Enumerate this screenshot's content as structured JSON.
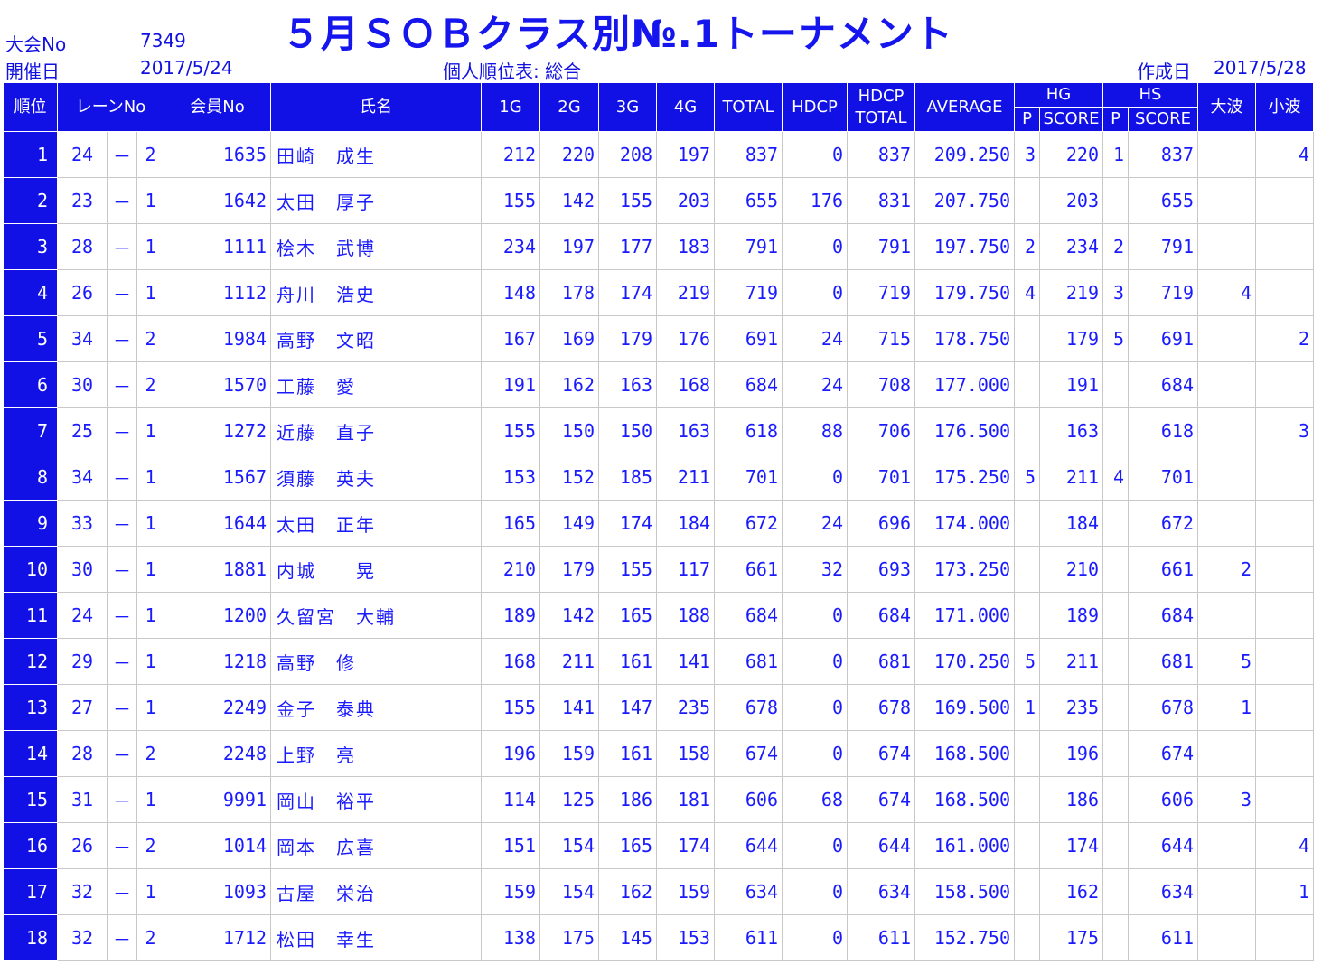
{
  "header": {
    "title": "５月ＳＯＢクラス別№.1トーナメント",
    "event_no_label": "大会No",
    "event_no": "7349",
    "held_label": "開催日",
    "held_date": "2017/5/24",
    "report_label": "個人順位表: 総合",
    "created_label": "作成日",
    "created_date": "2017/5/28"
  },
  "columns": {
    "rank": "順位",
    "lane": "レーンNo",
    "member": "会員No",
    "name": "氏名",
    "g1": "1G",
    "g2": "2G",
    "g3": "3G",
    "g4": "4G",
    "total": "TOTAL",
    "hdcp": "HDCP",
    "hdcp_total_1": "HDCP",
    "hdcp_total_2": "TOTAL",
    "average": "AVERAGE",
    "hg": "HG",
    "hg_p": "P",
    "hg_score": "SCORE",
    "hs": "HS",
    "hs_p": "P",
    "hs_score": "SCORE",
    "big": "大波",
    "small": "小波"
  },
  "rows": [
    {
      "rank": "1",
      "lane1": "24",
      "dash": "－",
      "lane2": "2",
      "member": "1635",
      "name": "田崎　成生",
      "g1": "212",
      "g2": "220",
      "g3": "208",
      "g4": "197",
      "total": "837",
      "hdcp": "0",
      "htotal": "837",
      "avg": "209.250",
      "hgp": "3",
      "hgs": "220",
      "hsp": "1",
      "hss": "837",
      "big": "",
      "small": "4"
    },
    {
      "rank": "2",
      "lane1": "23",
      "dash": "－",
      "lane2": "1",
      "member": "1642",
      "name": "太田　厚子",
      "g1": "155",
      "g2": "142",
      "g3": "155",
      "g4": "203",
      "total": "655",
      "hdcp": "176",
      "htotal": "831",
      "avg": "207.750",
      "hgp": "",
      "hgs": "203",
      "hsp": "",
      "hss": "655",
      "big": "",
      "small": ""
    },
    {
      "rank": "3",
      "lane1": "28",
      "dash": "－",
      "lane2": "1",
      "member": "1111",
      "name": "桧木　武博",
      "g1": "234",
      "g2": "197",
      "g3": "177",
      "g4": "183",
      "total": "791",
      "hdcp": "0",
      "htotal": "791",
      "avg": "197.750",
      "hgp": "2",
      "hgs": "234",
      "hsp": "2",
      "hss": "791",
      "big": "",
      "small": ""
    },
    {
      "rank": "4",
      "lane1": "26",
      "dash": "－",
      "lane2": "1",
      "member": "1112",
      "name": "舟川　浩史",
      "g1": "148",
      "g2": "178",
      "g3": "174",
      "g4": "219",
      "total": "719",
      "hdcp": "0",
      "htotal": "719",
      "avg": "179.750",
      "hgp": "4",
      "hgs": "219",
      "hsp": "3",
      "hss": "719",
      "big": "4",
      "small": ""
    },
    {
      "rank": "5",
      "lane1": "34",
      "dash": "－",
      "lane2": "2",
      "member": "1984",
      "name": "高野　文昭",
      "g1": "167",
      "g2": "169",
      "g3": "179",
      "g4": "176",
      "total": "691",
      "hdcp": "24",
      "htotal": "715",
      "avg": "178.750",
      "hgp": "",
      "hgs": "179",
      "hsp": "5",
      "hss": "691",
      "big": "",
      "small": "2"
    },
    {
      "rank": "6",
      "lane1": "30",
      "dash": "－",
      "lane2": "2",
      "member": "1570",
      "name": "工藤　愛",
      "g1": "191",
      "g2": "162",
      "g3": "163",
      "g4": "168",
      "total": "684",
      "hdcp": "24",
      "htotal": "708",
      "avg": "177.000",
      "hgp": "",
      "hgs": "191",
      "hsp": "",
      "hss": "684",
      "big": "",
      "small": ""
    },
    {
      "rank": "7",
      "lane1": "25",
      "dash": "－",
      "lane2": "1",
      "member": "1272",
      "name": "近藤　直子",
      "g1": "155",
      "g2": "150",
      "g3": "150",
      "g4": "163",
      "total": "618",
      "hdcp": "88",
      "htotal": "706",
      "avg": "176.500",
      "hgp": "",
      "hgs": "163",
      "hsp": "",
      "hss": "618",
      "big": "",
      "small": "3"
    },
    {
      "rank": "8",
      "lane1": "34",
      "dash": "－",
      "lane2": "1",
      "member": "1567",
      "name": "須藤　英夫",
      "g1": "153",
      "g2": "152",
      "g3": "185",
      "g4": "211",
      "total": "701",
      "hdcp": "0",
      "htotal": "701",
      "avg": "175.250",
      "hgp": "5",
      "hgs": "211",
      "hsp": "4",
      "hss": "701",
      "big": "",
      "small": ""
    },
    {
      "rank": "9",
      "lane1": "33",
      "dash": "－",
      "lane2": "1",
      "member": "1644",
      "name": "太田　正年",
      "g1": "165",
      "g2": "149",
      "g3": "174",
      "g4": "184",
      "total": "672",
      "hdcp": "24",
      "htotal": "696",
      "avg": "174.000",
      "hgp": "",
      "hgs": "184",
      "hsp": "",
      "hss": "672",
      "big": "",
      "small": ""
    },
    {
      "rank": "10",
      "lane1": "30",
      "dash": "－",
      "lane2": "1",
      "member": "1881",
      "name": "内城　　晃",
      "g1": "210",
      "g2": "179",
      "g3": "155",
      "g4": "117",
      "total": "661",
      "hdcp": "32",
      "htotal": "693",
      "avg": "173.250",
      "hgp": "",
      "hgs": "210",
      "hsp": "",
      "hss": "661",
      "big": "2",
      "small": ""
    },
    {
      "rank": "11",
      "lane1": "24",
      "dash": "－",
      "lane2": "1",
      "member": "1200",
      "name": "久留宮　大輔",
      "g1": "189",
      "g2": "142",
      "g3": "165",
      "g4": "188",
      "total": "684",
      "hdcp": "0",
      "htotal": "684",
      "avg": "171.000",
      "hgp": "",
      "hgs": "189",
      "hsp": "",
      "hss": "684",
      "big": "",
      "small": ""
    },
    {
      "rank": "12",
      "lane1": "29",
      "dash": "－",
      "lane2": "1",
      "member": "1218",
      "name": "高野　修",
      "g1": "168",
      "g2": "211",
      "g3": "161",
      "g4": "141",
      "total": "681",
      "hdcp": "0",
      "htotal": "681",
      "avg": "170.250",
      "hgp": "5",
      "hgs": "211",
      "hsp": "",
      "hss": "681",
      "big": "5",
      "small": ""
    },
    {
      "rank": "13",
      "lane1": "27",
      "dash": "－",
      "lane2": "1",
      "member": "2249",
      "name": "金子　泰典",
      "g1": "155",
      "g2": "141",
      "g3": "147",
      "g4": "235",
      "total": "678",
      "hdcp": "0",
      "htotal": "678",
      "avg": "169.500",
      "hgp": "1",
      "hgs": "235",
      "hsp": "",
      "hss": "678",
      "big": "1",
      "small": ""
    },
    {
      "rank": "14",
      "lane1": "28",
      "dash": "－",
      "lane2": "2",
      "member": "2248",
      "name": "上野　亮",
      "g1": "196",
      "g2": "159",
      "g3": "161",
      "g4": "158",
      "total": "674",
      "hdcp": "0",
      "htotal": "674",
      "avg": "168.500",
      "hgp": "",
      "hgs": "196",
      "hsp": "",
      "hss": "674",
      "big": "",
      "small": ""
    },
    {
      "rank": "15",
      "lane1": "31",
      "dash": "－",
      "lane2": "1",
      "member": "9991",
      "name": "岡山　裕平",
      "g1": "114",
      "g2": "125",
      "g3": "186",
      "g4": "181",
      "total": "606",
      "hdcp": "68",
      "htotal": "674",
      "avg": "168.500",
      "hgp": "",
      "hgs": "186",
      "hsp": "",
      "hss": "606",
      "big": "3",
      "small": ""
    },
    {
      "rank": "16",
      "lane1": "26",
      "dash": "－",
      "lane2": "2",
      "member": "1014",
      "name": "岡本　広喜",
      "g1": "151",
      "g2": "154",
      "g3": "165",
      "g4": "174",
      "total": "644",
      "hdcp": "0",
      "htotal": "644",
      "avg": "161.000",
      "hgp": "",
      "hgs": "174",
      "hsp": "",
      "hss": "644",
      "big": "",
      "small": "4"
    },
    {
      "rank": "17",
      "lane1": "32",
      "dash": "－",
      "lane2": "1",
      "member": "1093",
      "name": "古屋　栄治",
      "g1": "159",
      "g2": "154",
      "g3": "162",
      "g4": "159",
      "total": "634",
      "hdcp": "0",
      "htotal": "634",
      "avg": "158.500",
      "hgp": "",
      "hgs": "162",
      "hsp": "",
      "hss": "634",
      "big": "",
      "small": "1"
    },
    {
      "rank": "18",
      "lane1": "32",
      "dash": "－",
      "lane2": "2",
      "member": "1712",
      "name": "松田　幸生",
      "g1": "138",
      "g2": "175",
      "g3": "145",
      "g4": "153",
      "total": "611",
      "hdcp": "0",
      "htotal": "611",
      "avg": "152.750",
      "hgp": "",
      "hgs": "175",
      "hsp": "",
      "hss": "611",
      "big": "",
      "small": ""
    }
  ]
}
